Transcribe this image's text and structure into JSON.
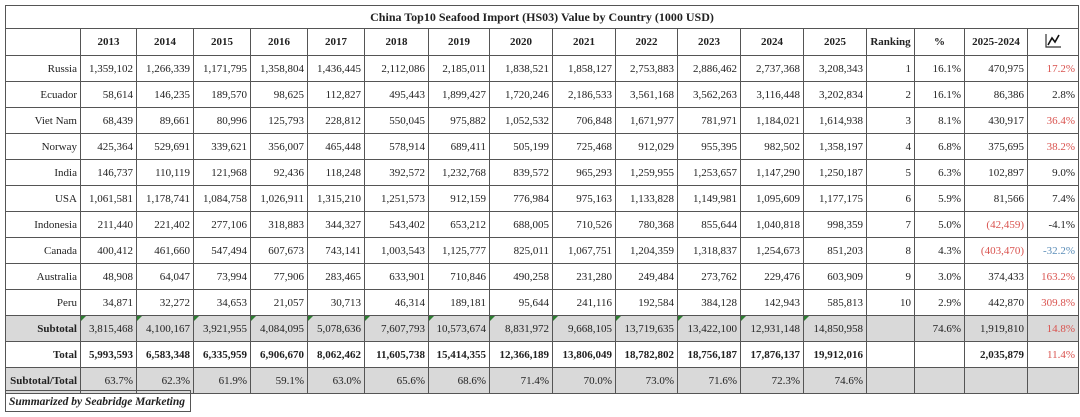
{
  "title": "China Top10 Seafood Import (HS03) Value by Country (1000 USD)",
  "headers": [
    "2013",
    "2014",
    "2015",
    "2016",
    "2017",
    "2018",
    "2019",
    "2020",
    "2021",
    "2022",
    "2023",
    "2024",
    "2025",
    "Ranking",
    "%",
    "2025-2024"
  ],
  "trend_icon": "line-chart-icon",
  "colors": {
    "red": "#d9534f",
    "blue": "#5b8db8",
    "grey": "#d9d9d9",
    "marker": "#2e7d32"
  },
  "rows": [
    {
      "name": "Russia",
      "values": [
        "1,359,102",
        "1,266,339",
        "1,171,795",
        "1,358,804",
        "1,436,445",
        "2,112,086",
        "2,185,011",
        "1,838,521",
        "1,858,127",
        "2,753,883",
        "2,886,462",
        "2,737,368",
        "3,208,343"
      ],
      "ranking": "1",
      "share": "16.1%",
      "diff": "470,975",
      "growth": "17.2%",
      "growth_color": "red"
    },
    {
      "name": "Ecuador",
      "values": [
        "58,614",
        "146,235",
        "189,570",
        "98,625",
        "112,827",
        "495,443",
        "1,899,427",
        "1,720,246",
        "2,186,533",
        "3,561,168",
        "3,562,263",
        "3,116,448",
        "3,202,834"
      ],
      "ranking": "2",
      "share": "16.1%",
      "diff": "86,386",
      "growth": "2.8%",
      "growth_color": "black"
    },
    {
      "name": "Viet Nam",
      "values": [
        "68,439",
        "89,661",
        "80,996",
        "125,793",
        "228,812",
        "550,045",
        "975,882",
        "1,052,532",
        "706,848",
        "1,671,977",
        "781,971",
        "1,184,021",
        "1,614,938"
      ],
      "ranking": "3",
      "share": "8.1%",
      "diff": "430,917",
      "growth": "36.4%",
      "growth_color": "red"
    },
    {
      "name": "Norway",
      "values": [
        "425,364",
        "529,691",
        "339,621",
        "356,007",
        "465,448",
        "578,914",
        "689,411",
        "505,199",
        "725,468",
        "912,029",
        "955,395",
        "982,502",
        "1,358,197"
      ],
      "ranking": "4",
      "share": "6.8%",
      "diff": "375,695",
      "growth": "38.2%",
      "growth_color": "red"
    },
    {
      "name": "India",
      "values": [
        "146,737",
        "110,119",
        "121,968",
        "92,436",
        "118,248",
        "392,572",
        "1,232,768",
        "839,572",
        "965,293",
        "1,259,955",
        "1,253,657",
        "1,147,290",
        "1,250,187"
      ],
      "ranking": "5",
      "share": "6.3%",
      "diff": "102,897",
      "growth": "9.0%",
      "growth_color": "black"
    },
    {
      "name": "USA",
      "values": [
        "1,061,581",
        "1,178,741",
        "1,084,758",
        "1,026,911",
        "1,315,210",
        "1,251,573",
        "912,159",
        "776,984",
        "975,163",
        "1,133,828",
        "1,149,981",
        "1,095,609",
        "1,177,175"
      ],
      "ranking": "6",
      "share": "5.9%",
      "diff": "81,566",
      "growth": "7.4%",
      "growth_color": "black"
    },
    {
      "name": "Indonesia",
      "values": [
        "211,440",
        "221,402",
        "277,106",
        "318,883",
        "344,327",
        "543,402",
        "653,212",
        "688,005",
        "710,526",
        "780,368",
        "855,644",
        "1,040,818",
        "998,359"
      ],
      "ranking": "7",
      "share": "5.0%",
      "diff": "(42,459)",
      "diff_color": "red",
      "growth": "-4.1%",
      "growth_color": "black"
    },
    {
      "name": "Canada",
      "values": [
        "400,412",
        "461,660",
        "547,494",
        "607,673",
        "743,141",
        "1,003,543",
        "1,125,777",
        "825,011",
        "1,067,751",
        "1,204,359",
        "1,318,837",
        "1,254,673",
        "851,203"
      ],
      "ranking": "8",
      "share": "4.3%",
      "diff": "(403,470)",
      "diff_color": "red",
      "growth": "-32.2%",
      "growth_color": "blue"
    },
    {
      "name": "Australia",
      "values": [
        "48,908",
        "64,047",
        "73,994",
        "77,906",
        "283,465",
        "633,901",
        "710,846",
        "490,258",
        "231,280",
        "249,484",
        "273,762",
        "229,476",
        "603,909"
      ],
      "ranking": "9",
      "share": "3.0%",
      "diff": "374,433",
      "growth": "163.2%",
      "growth_color": "red"
    },
    {
      "name": "Peru",
      "values": [
        "34,871",
        "32,272",
        "34,653",
        "21,057",
        "30,713",
        "46,314",
        "189,181",
        "95,644",
        "241,116",
        "192,584",
        "384,128",
        "142,943",
        "585,813"
      ],
      "ranking": "10",
      "share": "2.9%",
      "diff": "442,870",
      "growth": "309.8%",
      "growth_color": "red"
    }
  ],
  "subtotal": {
    "name": "Subtotal",
    "values": [
      "3,815,468",
      "4,100,167",
      "3,921,955",
      "4,084,095",
      "5,078,636",
      "7,607,793",
      "10,573,674",
      "8,831,972",
      "9,668,105",
      "13,719,635",
      "13,422,100",
      "12,931,148",
      "14,850,958"
    ],
    "ranking": "",
    "share": "74.6%",
    "diff": "1,919,810",
    "growth": "14.8%",
    "growth_color": "red"
  },
  "total": {
    "name": "Total",
    "values": [
      "5,993,593",
      "6,583,348",
      "6,335,959",
      "6,906,670",
      "8,062,462",
      "11,605,738",
      "15,414,355",
      "12,366,189",
      "13,806,049",
      "18,782,802",
      "18,756,187",
      "17,876,137",
      "19,912,016"
    ],
    "ranking": "",
    "share": "",
    "diff": "2,035,879",
    "growth": "11.4%",
    "growth_color": "red"
  },
  "ratio": {
    "name": "Subtotal/Total",
    "values": [
      "63.7%",
      "62.3%",
      "61.9%",
      "59.1%",
      "63.0%",
      "65.6%",
      "68.6%",
      "71.4%",
      "70.0%",
      "73.0%",
      "71.6%",
      "72.3%",
      "74.6%"
    ],
    "ranking": "",
    "share": "",
    "diff": "",
    "growth": ""
  },
  "footer": "Summarized by Seabridge Marketing"
}
